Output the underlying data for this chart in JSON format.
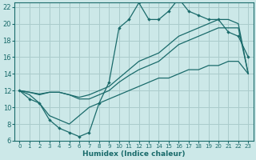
{
  "xlabel": "Humidex (Indice chaleur)",
  "bg_color": "#cce8e8",
  "grid_color": "#aacccc",
  "line_color": "#1a6b6b",
  "xlim": [
    -0.5,
    23.5
  ],
  "ylim": [
    6,
    22.5
  ],
  "xticks": [
    0,
    1,
    2,
    3,
    4,
    5,
    6,
    7,
    8,
    9,
    10,
    11,
    12,
    13,
    14,
    15,
    16,
    17,
    18,
    19,
    20,
    21,
    22,
    23
  ],
  "yticks": [
    6,
    8,
    10,
    12,
    14,
    16,
    18,
    20,
    22
  ],
  "zigzag_x": [
    0,
    1,
    2,
    3,
    4,
    5,
    6,
    7,
    8,
    9,
    10,
    11,
    12,
    13,
    14,
    15,
    16,
    17,
    18,
    19,
    20,
    21,
    22,
    23
  ],
  "zigzag_y": [
    12,
    11,
    10.5,
    8.5,
    7.5,
    7,
    6.5,
    7,
    10.5,
    13,
    19.5,
    20.5,
    22.5,
    20.5,
    20.5,
    21.5,
    23,
    21.5,
    21,
    20.5,
    20.5,
    19,
    18.5,
    16
  ],
  "trend1_x": [
    0,
    1,
    2,
    3,
    4,
    5,
    6,
    7,
    8,
    9,
    10,
    11,
    12,
    13,
    14,
    15,
    16,
    17,
    18,
    19,
    20,
    21,
    22,
    23
  ],
  "trend1_y": [
    12,
    11.8,
    11.6,
    11.8,
    11.8,
    11.5,
    11.2,
    11.5,
    12,
    12.5,
    13.5,
    14.5,
    15.5,
    16,
    16.5,
    17.5,
    18.5,
    19,
    19.5,
    20,
    20.5,
    20.5,
    20,
    14
  ],
  "trend2_x": [
    0,
    1,
    2,
    3,
    4,
    5,
    6,
    7,
    8,
    9,
    10,
    11,
    12,
    13,
    14,
    15,
    16,
    17,
    18,
    19,
    20,
    21,
    22,
    23
  ],
  "trend2_y": [
    12,
    11.8,
    11.5,
    11.8,
    11.8,
    11.5,
    11,
    11,
    11.5,
    12,
    13,
    13.8,
    14.5,
    15,
    15.5,
    16.5,
    17.5,
    18,
    18.5,
    19,
    19.5,
    19.5,
    19.5,
    14
  ],
  "envelope_x": [
    0,
    1,
    2,
    3,
    4,
    5,
    6,
    7,
    8,
    9,
    10,
    11,
    12,
    13,
    14,
    15,
    16,
    17,
    18,
    19,
    20,
    21,
    22,
    23
  ],
  "envelope_y": [
    12,
    11.5,
    10.5,
    9,
    8.5,
    8,
    9,
    10,
    10.5,
    11,
    11.5,
    12,
    12.5,
    13,
    13.5,
    13.5,
    14,
    14.5,
    14.5,
    15,
    15,
    15.5,
    15.5,
    14
  ]
}
